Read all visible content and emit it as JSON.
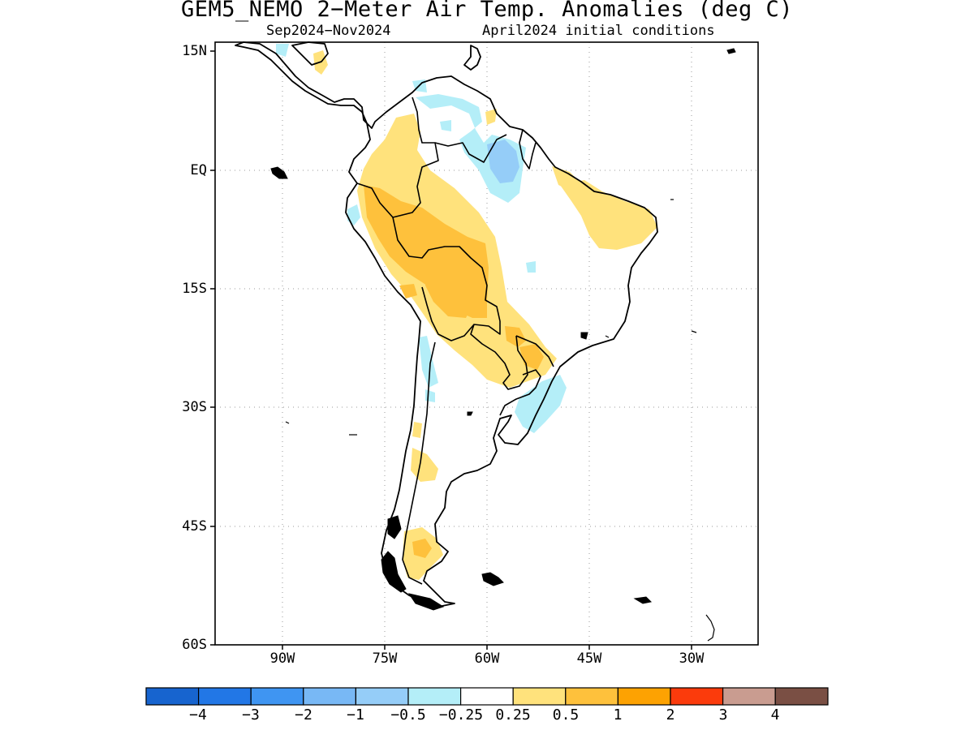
{
  "title": "GEM5_NEMO 2−Meter Air Temp. Anomalies (deg C)",
  "subtitle_left": "Sep2024−Nov2024",
  "subtitle_right": "April2024 initial conditions",
  "y_ticks": [
    "15N",
    "EQ",
    "15S",
    "30S",
    "45S",
    "60S"
  ],
  "x_ticks": [
    "90W",
    "75W",
    "60W",
    "45W",
    "30W"
  ],
  "colorbar": {
    "colors": [
      "#1764cf",
      "#2277e6",
      "#3f95f2",
      "#78b8f5",
      "#95cdf8",
      "#b4eef8",
      "#ffffff",
      "#ffe27c",
      "#fec13c",
      "#fda202",
      "#fb3b0c",
      "#c99c90",
      "#7a4f44"
    ],
    "labels": [
      "−4",
      "−3",
      "−2",
      "−1",
      "−0.5",
      "−0.25",
      "0.25",
      "0.5",
      "1",
      "2",
      "3",
      "4"
    ]
  }
}
